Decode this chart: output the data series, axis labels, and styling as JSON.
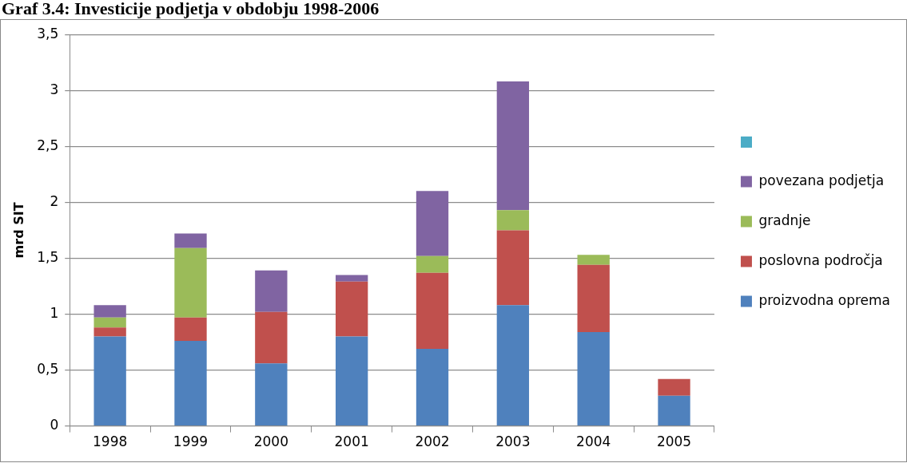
{
  "chart_data": {
    "type": "bar",
    "title": "Graf 3.4: Investicije podjetja v obdobju 1998-2006",
    "ylabel": "mrd SIT",
    "categories": [
      "1998",
      "1999",
      "2000",
      "2001",
      "2002",
      "2003",
      "2004",
      "2005"
    ],
    "series": [
      {
        "name": "proizvodna oprema",
        "color": "#4f81bd",
        "values": [
          0.8,
          0.76,
          0.56,
          0.8,
          0.69,
          1.08,
          0.84,
          0.27
        ]
      },
      {
        "name": "poslovna področja",
        "color": "#c0504d",
        "values": [
          0.08,
          0.21,
          0.46,
          0.49,
          0.68,
          0.67,
          0.6,
          0.15
        ]
      },
      {
        "name": "gradnje",
        "color": "#9bbb59",
        "values": [
          0.09,
          0.62,
          null,
          null,
          0.15,
          0.18,
          0.09,
          null
        ]
      },
      {
        "name": "povezana podjetja",
        "color": "#8064a2",
        "values": [
          0.11,
          0.13,
          0.37,
          0.06,
          0.58,
          1.15,
          null,
          null
        ]
      }
    ],
    "stacked": true,
    "ylim": [
      0,
      3.5
    ],
    "yticks": [
      0,
      {
        "value": 0.5,
        "label": "0,5"
      },
      1,
      {
        "value": 1.5,
        "label": "1,5"
      },
      2,
      {
        "value": 2.5,
        "label": "2,5"
      },
      3,
      {
        "value": 3.5,
        "label": "3,5"
      }
    ],
    "grid": "y",
    "legend": "right"
  }
}
